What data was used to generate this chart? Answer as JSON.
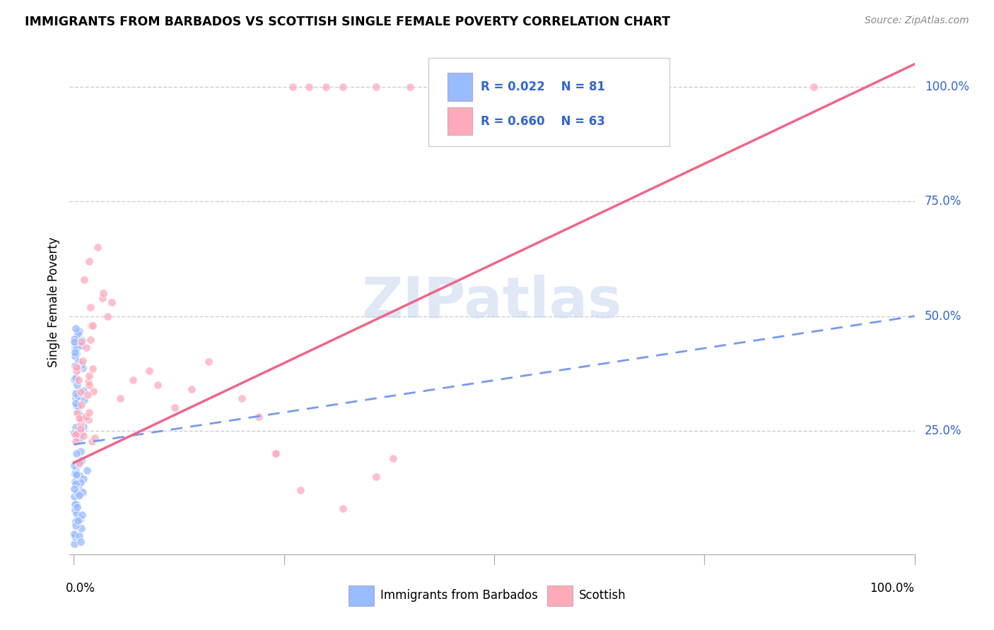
{
  "title": "IMMIGRANTS FROM BARBADOS VS SCOTTISH SINGLE FEMALE POVERTY CORRELATION CHART",
  "source": "Source: ZipAtlas.com",
  "ylabel": "Single Female Poverty",
  "ytick_labels": [
    "100.0%",
    "75.0%",
    "50.0%",
    "25.0%"
  ],
  "ytick_values": [
    1.0,
    0.75,
    0.5,
    0.25
  ],
  "legend_r1": "R = 0.022",
  "legend_n1": "N = 81",
  "legend_r2": "R = 0.660",
  "legend_n2": "N = 63",
  "blue_color": "#99bbff",
  "pink_color": "#ffaabb",
  "blue_line_color": "#7799ee",
  "pink_line_color": "#ee6688",
  "legend_text_color": "#3366cc",
  "grid_color": "#ccccdd",
  "background_color": "#ffffff",
  "watermark_color": "#ccd9f0",
  "bottom_legend_label1": "Immigrants from Barbados",
  "bottom_legend_label2": "Scottish"
}
